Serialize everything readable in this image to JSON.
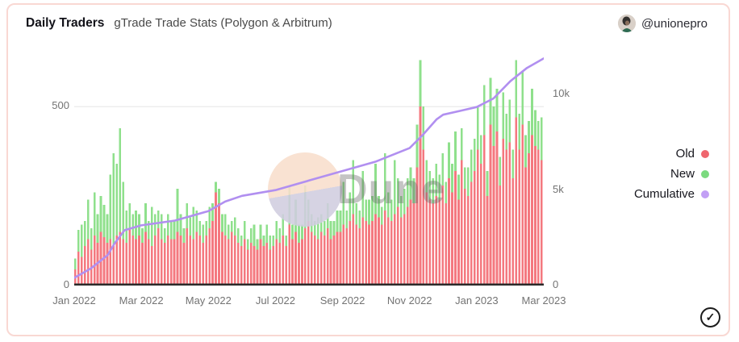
{
  "header": {
    "title": "Daily Traders",
    "subtitle": "gTrade Trade Stats (Polygon & Arbitrum)",
    "author": "@unionepro"
  },
  "watermark": {
    "text": "Dune"
  },
  "icons": {
    "check": "✓"
  },
  "chart_data": {
    "type": "bar",
    "stacked": true,
    "title": "Daily Traders",
    "subtitle": "gTrade Trade Stats (Polygon & Arbitrum)",
    "x_range_months": 14,
    "x_start": "Jan 2022",
    "x_end": "Mar 2023",
    "left_axis": {
      "max": 640,
      "ticks": [
        {
          "label": "500",
          "value": 500
        },
        {
          "label": "0",
          "value": 0
        }
      ]
    },
    "right_axis": {
      "max": 12000,
      "ticks": [
        {
          "label": "10k",
          "value": 10000
        },
        {
          "label": "5k",
          "value": 5000
        },
        {
          "label": "0",
          "value": 0
        }
      ]
    },
    "gridlines_left": [
      500
    ],
    "x_ticks": [
      {
        "label": "Jan 2022",
        "m": 0
      },
      {
        "label": "Mar 2022",
        "m": 2
      },
      {
        "label": "May 2022",
        "m": 4
      },
      {
        "label": "Jul 2022",
        "m": 6
      },
      {
        "label": "Sep 2022",
        "m": 8
      },
      {
        "label": "Nov 2022",
        "m": 10
      },
      {
        "label": "Jan 2023",
        "m": 12
      },
      {
        "label": "Mar 2023",
        "m": 14
      }
    ],
    "legend": [
      {
        "label": "Old",
        "color": "#ef666e"
      },
      {
        "label": "New",
        "color": "#7bda7f"
      },
      {
        "label": "Cumulative",
        "color": "#c29ff5"
      }
    ],
    "series": [
      {
        "name": "Old",
        "color": "#f4787f",
        "values": [
          45,
          95,
          80,
          110,
          130,
          100,
          140,
          120,
          150,
          135,
          120,
          130,
          110,
          140,
          150,
          130,
          120,
          160,
          140,
          130,
          140,
          120,
          150,
          130,
          110,
          140,
          160,
          130,
          120,
          140,
          130,
          130,
          150,
          140,
          120,
          160,
          140,
          130,
          150,
          140,
          120,
          140,
          160,
          180,
          260,
          230,
          150,
          140,
          130,
          150,
          140,
          120,
          110,
          130,
          100,
          120,
          110,
          100,
          130,
          110,
          120,
          100,
          110,
          130,
          120,
          140,
          110,
          170,
          130,
          150,
          120,
          130,
          160,
          180,
          150,
          140,
          130,
          150,
          140,
          160,
          130,
          140,
          150,
          150,
          170,
          160,
          180,
          200,
          170,
          160,
          190,
          180,
          170,
          180,
          200,
          190,
          170,
          210,
          190,
          180,
          200,
          220,
          190,
          200,
          220,
          240,
          230,
          330,
          500,
          380,
          260,
          240,
          230,
          250,
          240,
          280,
          230,
          300,
          260,
          320,
          240,
          350,
          270,
          250,
          290,
          320,
          380,
          340,
          420,
          250,
          450,
          390,
          430,
          280,
          410,
          380,
          400,
          300,
          470,
          380,
          450,
          330,
          370,
          420,
          390,
          380,
          350
        ]
      },
      {
        "name": "New",
        "color": "#8fe08c",
        "values": [
          30,
          60,
          90,
          70,
          110,
          60,
          120,
          80,
          100,
          90,
          80,
          180,
          260,
          200,
          290,
          160,
          90,
          70,
          60,
          80,
          60,
          40,
          80,
          50,
          110,
          60,
          50,
          70,
          40,
          60,
          50,
          50,
          120,
          60,
          40,
          70,
          50,
          90,
          60,
          40,
          50,
          40,
          60,
          50,
          30,
          40,
          50,
          60,
          40,
          30,
          50,
          40,
          30,
          50,
          30,
          40,
          60,
          30,
          40,
          30,
          50,
          40,
          30,
          50,
          40,
          60,
          30,
          110,
          40,
          90,
          50,
          40,
          120,
          60,
          50,
          40,
          60,
          50,
          40,
          70,
          50,
          40,
          60,
          60,
          120,
          50,
          80,
          150,
          60,
          50,
          130,
          60,
          70,
          70,
          140,
          60,
          50,
          160,
          70,
          60,
          150,
          80,
          60,
          70,
          80,
          90,
          70,
          120,
          130,
          120,
          90,
          80,
          70,
          90,
          70,
          90,
          60,
          100,
          80,
          110,
          70,
          90,
          60,
          80,
          90,
          90,
          120,
          80,
          140,
          70,
          130,
          110,
          120,
          80,
          130,
          100,
          120,
          80,
          160,
          100,
          150,
          90,
          90,
          130,
          100,
          80,
          120
        ]
      }
    ],
    "cumulative": {
      "name": "Cumulative",
      "color": "#b18ff0",
      "axis": "right",
      "points": [
        [
          0,
          400
        ],
        [
          0.5,
          900
        ],
        [
          1,
          1600
        ],
        [
          1.2,
          2200
        ],
        [
          1.5,
          2900
        ],
        [
          2,
          3150
        ],
        [
          3,
          3400
        ],
        [
          3.5,
          3650
        ],
        [
          4,
          3900
        ],
        [
          4.5,
          4400
        ],
        [
          5,
          4700
        ],
        [
          6,
          5000
        ],
        [
          7,
          5500
        ],
        [
          8,
          6000
        ],
        [
          9,
          6500
        ],
        [
          10,
          7200
        ],
        [
          10.4,
          7900
        ],
        [
          10.8,
          8700
        ],
        [
          11,
          8950
        ],
        [
          11.5,
          9150
        ],
        [
          12,
          9350
        ],
        [
          12.5,
          9800
        ],
        [
          13,
          10700
        ],
        [
          13.5,
          11400
        ],
        [
          14,
          11900
        ]
      ]
    }
  }
}
